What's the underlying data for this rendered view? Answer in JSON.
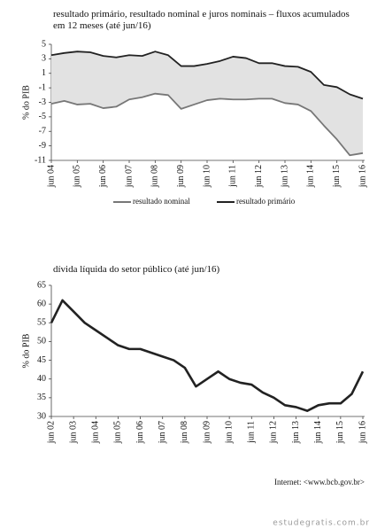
{
  "chart_data": [
    {
      "type": "line",
      "title": "resultado primário, resultado nominal e juros nominais – fluxos acumulados em 12 meses (até jun/16)",
      "y_label": "% do PIB",
      "categories": [
        "jun 04",
        null,
        "jun 05",
        null,
        "jun 06",
        null,
        "jun 07",
        null,
        "jun 08",
        null,
        "jun 09",
        null,
        "jun 10",
        null,
        "jun 11",
        null,
        "jun 12",
        null,
        "jun 13",
        null,
        "jun 14",
        null,
        "jun 15",
        null,
        "jun 16"
      ],
      "series": [
        {
          "name": "resultado nominal",
          "color": "#777777",
          "values": [
            -3.2,
            -2.8,
            -3.3,
            -3.2,
            -3.8,
            -3.6,
            -2.6,
            -2.3,
            -1.8,
            -2.0,
            -3.9,
            -3.3,
            -2.7,
            -2.5,
            -2.6,
            -2.6,
            -2.5,
            -2.5,
            -3.1,
            -3.3,
            -4.2,
            -6.2,
            -8.1,
            -10.3,
            -10.0
          ]
        },
        {
          "name": "resultado primário",
          "color": "#222222",
          "values": [
            3.5,
            3.8,
            4.0,
            3.9,
            3.4,
            3.2,
            3.5,
            3.4,
            4.0,
            3.5,
            2.0,
            2.0,
            2.3,
            2.7,
            3.3,
            3.1,
            2.4,
            2.4,
            2.0,
            1.9,
            1.2,
            -0.6,
            -0.9,
            -1.9,
            -2.5
          ]
        }
      ],
      "fill_between": true,
      "fill_color": "#e2e2e2",
      "ylim": [
        -11,
        5
      ],
      "yticks": [
        5,
        3,
        1,
        -1,
        -3,
        -5,
        -7,
        -9,
        -11
      ],
      "legend": "bottom"
    },
    {
      "type": "line",
      "title": "dívida líquida do setor público (até jun/16)",
      "y_label": "% do PIB",
      "categories": [
        "jun 02",
        null,
        "jun 03",
        null,
        "jun 04",
        null,
        "jun 05",
        null,
        "jun 06",
        null,
        "jun 07",
        null,
        "jun 08",
        null,
        "jun 09",
        null,
        "jun 10",
        null,
        "jun 11",
        null,
        "jun 12",
        null,
        "jun 13",
        null,
        "jun 14",
        null,
        "jun 15",
        null,
        "jun 16"
      ],
      "series": [
        {
          "color": "#222222",
          "values": [
            55,
            61,
            58,
            55,
            53,
            51,
            49,
            48,
            48,
            47,
            46,
            45,
            43,
            38,
            40,
            42,
            40,
            39,
            38.5,
            36.4,
            35,
            33,
            32.5,
            31.5,
            33,
            33.5,
            33.5,
            36,
            42
          ]
        }
      ],
      "ylim": [
        30,
        65
      ],
      "yticks": [
        65,
        60,
        55,
        50,
        45,
        40,
        35,
        30
      ]
    }
  ],
  "source": "Internet: <www.bcb.gov.br>",
  "watermark": "estudegratis.com.br"
}
